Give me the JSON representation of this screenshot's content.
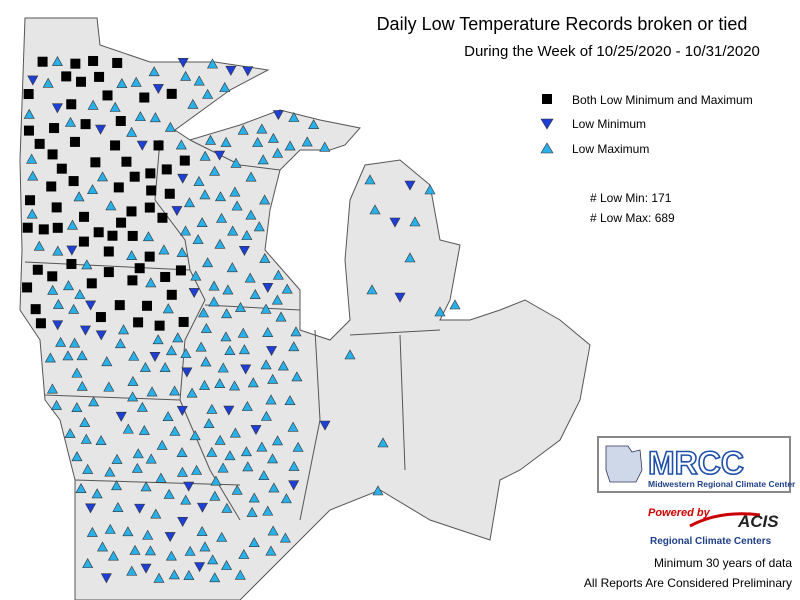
{
  "title": "Daily Low Temperature Records broken or tied",
  "subtitle": "During the Week of 10/25/2020 - 10/31/2020",
  "legend": [
    "Both Low Minimum and Maximum",
    "Low Minimum",
    "Low Maximum"
  ],
  "counts": [
    {
      "label": "# Low Min:",
      "value": 171
    },
    {
      "label": "# Low Max:",
      "value": 689
    }
  ],
  "logo": {
    "name": "MRCC",
    "full_name": "Midwestern Regional Climate Center"
  },
  "acis": {
    "powered_by": "Powered by",
    "name": "ACIS",
    "tagline": "Regional Climate Centers"
  },
  "footer": [
    "Minimum 30 years of data",
    "All Reports Are Considered Preliminary"
  ]
}
